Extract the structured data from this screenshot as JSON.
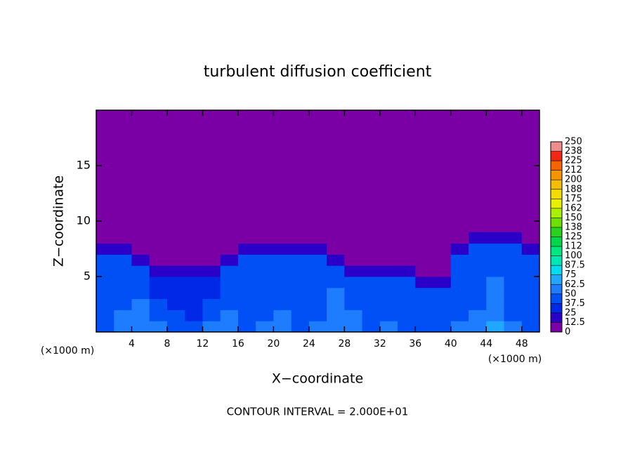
{
  "chart_data": {
    "type": "heatmap",
    "title": "turbulent diffusion coefficient",
    "x_label": "X−coordinate",
    "y_label": "Z−coordinate",
    "x_unit_left": "(×1000 m)",
    "x_unit_right": "(×1000 m)",
    "annotation": "CONTOUR INTERVAL = 2.000E+01",
    "xlim": [
      0,
      50
    ],
    "ylim": [
      0,
      20
    ],
    "xticks": [
      4,
      8,
      12,
      16,
      20,
      24,
      28,
      32,
      36,
      40,
      44,
      48
    ],
    "yticks": [
      5,
      10,
      15
    ],
    "x": [
      1,
      3,
      5,
      7,
      9,
      11,
      13,
      15,
      17,
      19,
      21,
      23,
      25,
      27,
      29,
      31,
      33,
      35,
      37,
      39,
      41,
      43,
      45,
      47,
      49
    ],
    "z": [
      0.5,
      1.5,
      2.5,
      3.5,
      4.5,
      5.5,
      6.5,
      7.5,
      8.5
    ],
    "field": [
      [
        45,
        55,
        60,
        50,
        45,
        45,
        50,
        55,
        45,
        50,
        55,
        45,
        50,
        60,
        55,
        45,
        50,
        45,
        45,
        45,
        50,
        55,
        65,
        50,
        45
      ],
      [
        40,
        50,
        55,
        40,
        40,
        30,
        40,
        50,
        40,
        45,
        50,
        40,
        45,
        55,
        50,
        40,
        45,
        40,
        40,
        40,
        45,
        50,
        60,
        45,
        40
      ],
      [
        40,
        45,
        50,
        40,
        30,
        30,
        40,
        45,
        45,
        40,
        45,
        40,
        40,
        55,
        45,
        40,
        40,
        40,
        40,
        40,
        40,
        45,
        55,
        40,
        40
      ],
      [
        40,
        40,
        45,
        30,
        30,
        30,
        35,
        40,
        45,
        40,
        40,
        45,
        40,
        50,
        40,
        40,
        45,
        40,
        40,
        40,
        40,
        40,
        55,
        40,
        40
      ],
      [
        40,
        40,
        40,
        30,
        30,
        30,
        30,
        40,
        40,
        45,
        45,
        45,
        40,
        45,
        40,
        40,
        40,
        40,
        20,
        20,
        40,
        40,
        50,
        40,
        40
      ],
      [
        40,
        40,
        40,
        20,
        20,
        20,
        20,
        40,
        45,
        45,
        45,
        40,
        45,
        40,
        20,
        20,
        20,
        20,
        0,
        0,
        40,
        40,
        45,
        40,
        40
      ],
      [
        40,
        40,
        20,
        0,
        0,
        0,
        0,
        20,
        45,
        40,
        40,
        40,
        40,
        20,
        0,
        0,
        0,
        0,
        0,
        0,
        40,
        40,
        45,
        40,
        40
      ],
      [
        20,
        20,
        0,
        0,
        0,
        0,
        0,
        0,
        20,
        20,
        20,
        20,
        20,
        0,
        0,
        0,
        0,
        0,
        0,
        0,
        20,
        40,
        40,
        40,
        20
      ],
      [
        0,
        0,
        0,
        0,
        0,
        0,
        0,
        0,
        0,
        0,
        0,
        0,
        0,
        0,
        0,
        0,
        0,
        0,
        0,
        0,
        0,
        20,
        20,
        20,
        0
      ]
    ],
    "colorbar_lim": [
      0,
      250
    ],
    "colorbar_ticks": [
      0,
      12.5,
      25,
      37.5,
      50,
      62.5,
      75,
      87.5,
      100,
      {
        "value": 112.5,
        "label": "112"
      },
      125,
      {
        "value": 137.5,
        "label": "138"
      },
      150,
      {
        "value": 162.5,
        "label": "162"
      },
      175,
      {
        "value": 187.5,
        "label": "188"
      },
      200,
      {
        "value": 212.5,
        "label": "212"
      },
      225,
      {
        "value": 237.5,
        "label": "238"
      },
      250
    ],
    "colors": [
      "#7a00a6",
      "#2a00c8",
      "#0028e6",
      "#0050f5",
      "#1e7cff",
      "#20a8ff",
      "#00dcf0",
      "#00e6b4",
      "#00e680",
      "#00d84a",
      "#28d21e",
      "#6ee000",
      "#aaf000",
      "#e6f000",
      "#f5dc00",
      "#f5be00",
      "#f59600",
      "#f56400",
      "#f02814",
      "#f08c8c"
    ]
  }
}
